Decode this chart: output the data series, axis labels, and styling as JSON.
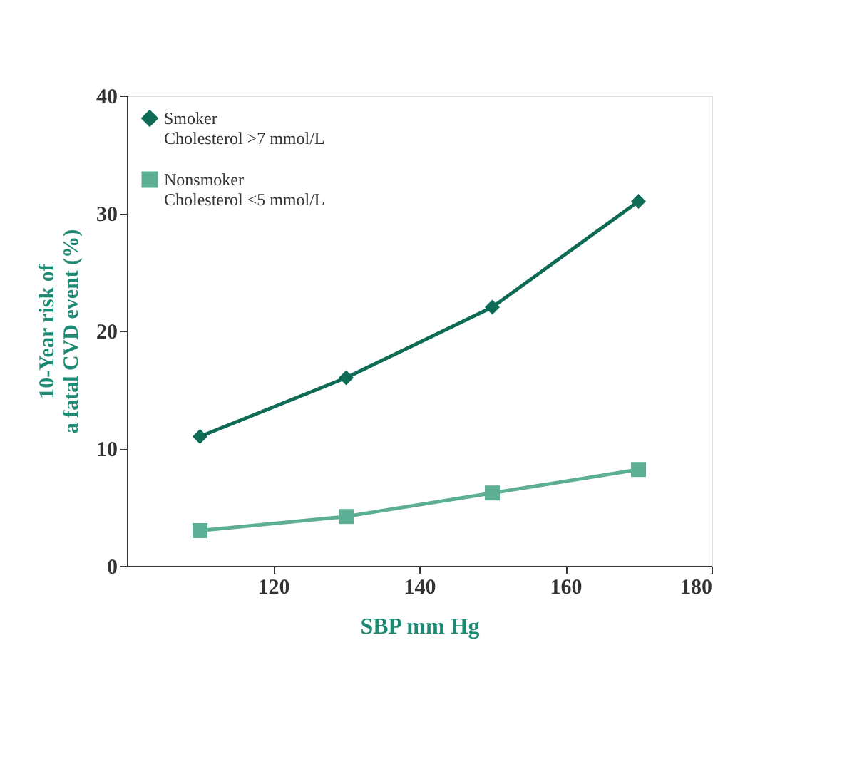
{
  "chart_data": {
    "type": "line",
    "x": [
      110,
      130,
      150,
      170
    ],
    "series": [
      {
        "name": "Smoker\nCholesterol >7 mmol/L",
        "color": "#0e6b55",
        "marker": "diamond",
        "values": [
          11,
          16,
          22,
          31
        ]
      },
      {
        "name": "Nonsmoker\nCholesterol <5 mmol/L",
        "color": "#5cae95",
        "marker": "square",
        "values": [
          3,
          4.2,
          6.2,
          8.2
        ]
      }
    ],
    "xlabel": "SBP mm Hg",
    "ylabel": "10-Year risk of\na fatal CVD event (%)",
    "xlim": [
      100,
      180
    ],
    "xticks": [
      120,
      140,
      160,
      180
    ],
    "ylim": [
      0,
      40
    ],
    "yticks": [
      0,
      10,
      20,
      30,
      40
    ],
    "grid": false,
    "legend": "top left",
    "line_style": "solid"
  }
}
